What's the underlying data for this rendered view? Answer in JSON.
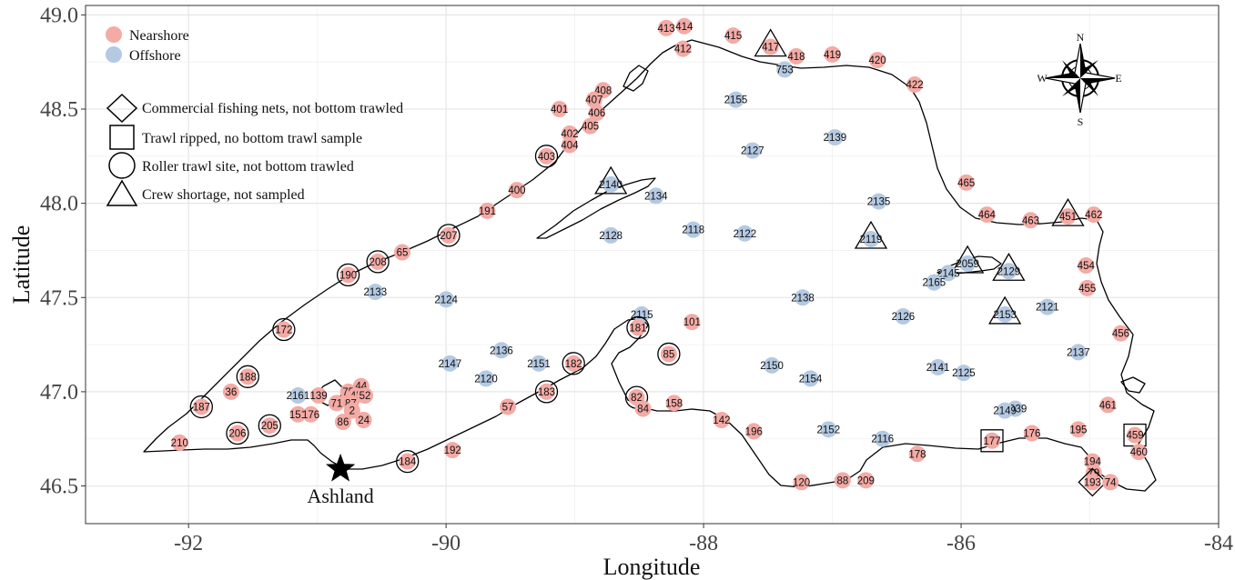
{
  "axes": {
    "xlabel": "Longitude",
    "ylabel": "Latitude",
    "xlim": [
      -92.8,
      -84.0
    ],
    "ylim": [
      46.3,
      49.05
    ],
    "xticks": [
      -92,
      -90,
      -88,
      -86,
      -84
    ],
    "yticks": [
      46.5,
      47.0,
      47.5,
      48.0,
      48.5,
      49.0
    ],
    "grid": true
  },
  "legend": {
    "zones": [
      {
        "label": "Nearshore",
        "color": "#f4aaa5"
      },
      {
        "label": "Offshore",
        "color": "#b4c9e2"
      }
    ],
    "markers": [
      {
        "shape": "diamond",
        "label": "Commercial fishing nets, not bottom trawled"
      },
      {
        "shape": "square",
        "label": "Trawl ripped, no bottom trawl sample"
      },
      {
        "shape": "circle",
        "label": "Roller trawl site, not bottom trawled"
      },
      {
        "shape": "triangle",
        "label": "Crew shortage, not sampled"
      }
    ]
  },
  "compass": {
    "n": "N",
    "s": "S",
    "e": "E",
    "w": "W"
  },
  "city": {
    "name": "Ashland",
    "lon": -90.82,
    "lat": 46.59
  },
  "colors": {
    "nearshore": "#f4aaa5",
    "offshore": "#b4c9e2",
    "coast": "#000000",
    "grid": "#e6e6e6"
  },
  "chart_data": {
    "type": "scatter",
    "sites": [
      {
        "id": "413",
        "lon": -88.29,
        "lat": 48.93,
        "zone": "nearshore"
      },
      {
        "id": "414",
        "lon": -88.15,
        "lat": 48.94,
        "zone": "nearshore"
      },
      {
        "id": "415",
        "lon": -87.77,
        "lat": 48.89,
        "zone": "nearshore"
      },
      {
        "id": "417",
        "lon": -87.48,
        "lat": 48.83,
        "zone": "nearshore",
        "marker": "triangle"
      },
      {
        "id": "412",
        "lon": -88.16,
        "lat": 48.82,
        "zone": "nearshore"
      },
      {
        "id": "418",
        "lon": -87.28,
        "lat": 48.78,
        "zone": "nearshore"
      },
      {
        "id": "419",
        "lon": -87.0,
        "lat": 48.79,
        "zone": "nearshore"
      },
      {
        "id": "420",
        "lon": -86.65,
        "lat": 48.76,
        "zone": "nearshore"
      },
      {
        "id": "753",
        "lon": -87.37,
        "lat": 48.71,
        "zone": "offshore"
      },
      {
        "id": "422",
        "lon": -86.36,
        "lat": 48.63,
        "zone": "nearshore"
      },
      {
        "id": "408",
        "lon": -88.78,
        "lat": 48.6,
        "zone": "nearshore"
      },
      {
        "id": "407",
        "lon": -88.85,
        "lat": 48.55,
        "zone": "nearshore"
      },
      {
        "id": "406",
        "lon": -88.83,
        "lat": 48.48,
        "zone": "nearshore"
      },
      {
        "id": "401",
        "lon": -89.12,
        "lat": 48.5,
        "zone": "nearshore"
      },
      {
        "id": "405",
        "lon": -88.88,
        "lat": 48.41,
        "zone": "nearshore"
      },
      {
        "id": "402",
        "lon": -89.04,
        "lat": 48.37,
        "zone": "nearshore"
      },
      {
        "id": "404",
        "lon": -89.04,
        "lat": 48.31,
        "zone": "nearshore"
      },
      {
        "id": "403",
        "lon": -89.22,
        "lat": 48.25,
        "zone": "nearshore",
        "marker": "circle"
      },
      {
        "id": "2155",
        "lon": -87.75,
        "lat": 48.55,
        "zone": "offshore"
      },
      {
        "id": "2139",
        "lon": -86.98,
        "lat": 48.35,
        "zone": "offshore"
      },
      {
        "id": "2127",
        "lon": -87.62,
        "lat": 48.28,
        "zone": "offshore"
      },
      {
        "id": "2140",
        "lon": -88.72,
        "lat": 48.1,
        "zone": "offshore",
        "marker": "triangle"
      },
      {
        "id": "400",
        "lon": -89.45,
        "lat": 48.07,
        "zone": "nearshore"
      },
      {
        "id": "465",
        "lon": -85.96,
        "lat": 48.11,
        "zone": "nearshore"
      },
      {
        "id": "2134",
        "lon": -88.37,
        "lat": 48.04,
        "zone": "offshore"
      },
      {
        "id": "2135",
        "lon": -86.64,
        "lat": 48.01,
        "zone": "offshore"
      },
      {
        "id": "191",
        "lon": -89.68,
        "lat": 47.96,
        "zone": "nearshore"
      },
      {
        "id": "464",
        "lon": -85.8,
        "lat": 47.94,
        "zone": "nearshore"
      },
      {
        "id": "463",
        "lon": -85.46,
        "lat": 47.91,
        "zone": "nearshore"
      },
      {
        "id": "451",
        "lon": -85.17,
        "lat": 47.93,
        "zone": "nearshore",
        "marker": "triangle"
      },
      {
        "id": "462",
        "lon": -84.97,
        "lat": 47.94,
        "zone": "nearshore"
      },
      {
        "id": "2128",
        "lon": -88.72,
        "lat": 47.83,
        "zone": "offshore"
      },
      {
        "id": "2118",
        "lon": -88.08,
        "lat": 47.86,
        "zone": "offshore"
      },
      {
        "id": "2122",
        "lon": -87.68,
        "lat": 47.84,
        "zone": "offshore"
      },
      {
        "id": "2119",
        "lon": -86.7,
        "lat": 47.81,
        "zone": "offshore",
        "marker": "triangle"
      },
      {
        "id": "207",
        "lon": -89.98,
        "lat": 47.83,
        "zone": "nearshore",
        "marker": "circle"
      },
      {
        "id": "65",
        "lon": -90.34,
        "lat": 47.74,
        "zone": "nearshore"
      },
      {
        "id": "208",
        "lon": -90.53,
        "lat": 47.69,
        "zone": "nearshore",
        "marker": "circle"
      },
      {
        "id": "190",
        "lon": -90.76,
        "lat": 47.62,
        "zone": "nearshore",
        "marker": "circle"
      },
      {
        "id": "2059",
        "lon": -85.95,
        "lat": 47.68,
        "zone": "offshore",
        "marker": "triangle"
      },
      {
        "id": "2145",
        "lon": -86.1,
        "lat": 47.63,
        "zone": "offshore"
      },
      {
        "id": "2165",
        "lon": -86.21,
        "lat": 47.58,
        "zone": "offshore"
      },
      {
        "id": "2129",
        "lon": -85.63,
        "lat": 47.64,
        "zone": "offshore",
        "marker": "triangle"
      },
      {
        "id": "454",
        "lon": -85.03,
        "lat": 47.67,
        "zone": "nearshore"
      },
      {
        "id": "2133",
        "lon": -90.55,
        "lat": 47.53,
        "zone": "offshore"
      },
      {
        "id": "2124",
        "lon": -90.0,
        "lat": 47.49,
        "zone": "offshore"
      },
      {
        "id": "2138",
        "lon": -87.23,
        "lat": 47.5,
        "zone": "offshore"
      },
      {
        "id": "455",
        "lon": -85.02,
        "lat": 47.55,
        "zone": "nearshore"
      },
      {
        "id": "2121",
        "lon": -85.33,
        "lat": 47.45,
        "zone": "offshore"
      },
      {
        "id": "2153",
        "lon": -85.66,
        "lat": 47.41,
        "zone": "offshore",
        "marker": "triangle"
      },
      {
        "id": "2126",
        "lon": -86.45,
        "lat": 47.4,
        "zone": "offshore"
      },
      {
        "id": "2115",
        "lon": -88.48,
        "lat": 47.41,
        "zone": "offshore"
      },
      {
        "id": "101",
        "lon": -88.09,
        "lat": 47.37,
        "zone": "nearshore"
      },
      {
        "id": "172",
        "lon": -91.26,
        "lat": 47.33,
        "zone": "nearshore",
        "marker": "circle"
      },
      {
        "id": "181",
        "lon": -88.51,
        "lat": 47.34,
        "zone": "nearshore",
        "marker": "circle"
      },
      {
        "id": "456",
        "lon": -84.76,
        "lat": 47.31,
        "zone": "nearshore"
      },
      {
        "id": "2136",
        "lon": -89.57,
        "lat": 47.22,
        "zone": "offshore"
      },
      {
        "id": "85",
        "lon": -88.27,
        "lat": 47.2,
        "zone": "nearshore",
        "marker": "circle"
      },
      {
        "id": "2137",
        "lon": -85.09,
        "lat": 47.21,
        "zone": "offshore"
      },
      {
        "id": "2147",
        "lon": -89.97,
        "lat": 47.15,
        "zone": "offshore"
      },
      {
        "id": "2151",
        "lon": -89.28,
        "lat": 47.15,
        "zone": "offshore"
      },
      {
        "id": "182",
        "lon": -89.01,
        "lat": 47.15,
        "zone": "nearshore",
        "marker": "circle"
      },
      {
        "id": "2150",
        "lon": -87.47,
        "lat": 47.14,
        "zone": "offshore"
      },
      {
        "id": "2141",
        "lon": -86.18,
        "lat": 47.13,
        "zone": "offshore"
      },
      {
        "id": "2125",
        "lon": -85.98,
        "lat": 47.1,
        "zone": "offshore"
      },
      {
        "id": "188",
        "lon": -91.54,
        "lat": 47.08,
        "zone": "nearshore",
        "marker": "circle"
      },
      {
        "id": "2120",
        "lon": -89.69,
        "lat": 47.07,
        "zone": "offshore"
      },
      {
        "id": "2154",
        "lon": -87.17,
        "lat": 47.07,
        "zone": "offshore"
      },
      {
        "id": "44",
        "lon": -90.66,
        "lat": 47.03,
        "zone": "nearshore"
      },
      {
        "id": "36",
        "lon": -91.67,
        "lat": 47.0,
        "zone": "nearshore"
      },
      {
        "id": "2161",
        "lon": -91.15,
        "lat": 46.98,
        "zone": "offshore"
      },
      {
        "id": "139",
        "lon": -90.99,
        "lat": 46.98,
        "zone": "nearshore"
      },
      {
        "id": "75",
        "lon": -90.76,
        "lat": 47.0,
        "zone": "nearshore"
      },
      {
        "id": "45",
        "lon": -90.7,
        "lat": 46.98,
        "zone": "nearshore"
      },
      {
        "id": "52",
        "lon": -90.63,
        "lat": 46.98,
        "zone": "nearshore"
      },
      {
        "id": "183",
        "lon": -89.22,
        "lat": 47.0,
        "zone": "nearshore",
        "marker": "circle"
      },
      {
        "id": "82",
        "lon": -88.52,
        "lat": 46.97,
        "zone": "nearshore",
        "marker": "circle"
      },
      {
        "id": "71",
        "lon": -90.85,
        "lat": 46.94,
        "zone": "nearshore"
      },
      {
        "id": "87",
        "lon": -90.74,
        "lat": 46.94,
        "zone": "nearshore"
      },
      {
        "id": "158",
        "lon": -88.23,
        "lat": 46.94,
        "zone": "nearshore"
      },
      {
        "id": "187",
        "lon": -91.9,
        "lat": 46.92,
        "zone": "nearshore",
        "marker": "circle"
      },
      {
        "id": "57",
        "lon": -89.52,
        "lat": 46.92,
        "zone": "nearshore"
      },
      {
        "id": "2",
        "lon": -90.73,
        "lat": 46.9,
        "zone": "nearshore"
      },
      {
        "id": "84",
        "lon": -88.47,
        "lat": 46.91,
        "zone": "nearshore"
      },
      {
        "id": "2039",
        "lon": -85.58,
        "lat": 46.91,
        "zone": "offshore"
      },
      {
        "id": "2149",
        "lon": -85.66,
        "lat": 46.9,
        "zone": "offshore"
      },
      {
        "id": "461",
        "lon": -84.86,
        "lat": 46.93,
        "zone": "nearshore"
      },
      {
        "id": "151",
        "lon": -91.15,
        "lat": 46.88,
        "zone": "nearshore"
      },
      {
        "id": "176",
        "lon": -91.05,
        "lat": 46.88,
        "zone": "nearshore"
      },
      {
        "id": "86",
        "lon": -90.8,
        "lat": 46.84,
        "zone": "nearshore"
      },
      {
        "id": "24",
        "lon": -90.64,
        "lat": 46.85,
        "zone": "nearshore"
      },
      {
        "id": "142",
        "lon": -87.86,
        "lat": 46.85,
        "zone": "nearshore"
      },
      {
        "id": "205",
        "lon": -91.37,
        "lat": 46.82,
        "zone": "nearshore",
        "marker": "circle"
      },
      {
        "id": "2152",
        "lon": -87.03,
        "lat": 46.8,
        "zone": "offshore"
      },
      {
        "id": "196",
        "lon": -87.61,
        "lat": 46.79,
        "zone": "nearshore"
      },
      {
        "id": "206",
        "lon": -91.62,
        "lat": 46.78,
        "zone": "nearshore",
        "marker": "circle"
      },
      {
        "id": "176",
        "lon": -85.45,
        "lat": 46.78,
        "zone": "nearshore"
      },
      {
        "id": "195",
        "lon": -85.09,
        "lat": 46.8,
        "zone": "nearshore"
      },
      {
        "id": "459",
        "lon": -84.65,
        "lat": 46.77,
        "zone": "nearshore",
        "marker": "square"
      },
      {
        "id": "2116",
        "lon": -86.61,
        "lat": 46.75,
        "zone": "offshore"
      },
      {
        "id": "177",
        "lon": -85.76,
        "lat": 46.74,
        "zone": "nearshore",
        "marker": "square"
      },
      {
        "id": "460",
        "lon": -84.62,
        "lat": 46.68,
        "zone": "nearshore"
      },
      {
        "id": "210",
        "lon": -92.07,
        "lat": 46.73,
        "zone": "nearshore"
      },
      {
        "id": "192",
        "lon": -89.95,
        "lat": 46.69,
        "zone": "nearshore"
      },
      {
        "id": "178",
        "lon": -86.34,
        "lat": 46.67,
        "zone": "nearshore"
      },
      {
        "id": "184",
        "lon": -90.3,
        "lat": 46.63,
        "zone": "nearshore",
        "marker": "circle"
      },
      {
        "id": "194",
        "lon": -84.98,
        "lat": 46.63,
        "zone": "nearshore"
      },
      {
        "id": "79",
        "lon": -84.97,
        "lat": 46.57,
        "zone": "nearshore"
      },
      {
        "id": "193",
        "lon": -84.98,
        "lat": 46.52,
        "zone": "nearshore",
        "marker": "diamond"
      },
      {
        "id": "74",
        "lon": -84.84,
        "lat": 46.52,
        "zone": "nearshore"
      },
      {
        "id": "120",
        "lon": -87.24,
        "lat": 46.52,
        "zone": "nearshore"
      },
      {
        "id": "88",
        "lon": -86.92,
        "lat": 46.53,
        "zone": "nearshore"
      },
      {
        "id": "209",
        "lon": -86.74,
        "lat": 46.53,
        "zone": "nearshore"
      }
    ]
  }
}
